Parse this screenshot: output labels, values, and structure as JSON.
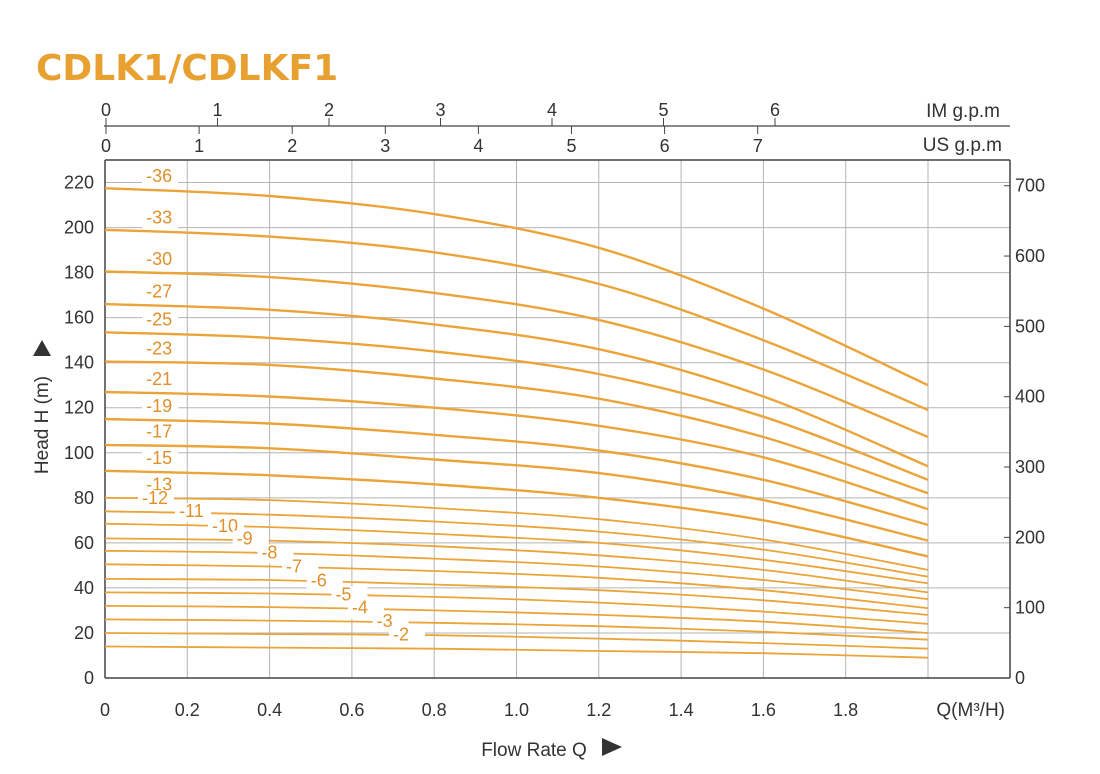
{
  "chart_data": {
    "type": "line",
    "title": "CDLK1/CDLKF1",
    "xlabel": "Flow Rate Q",
    "xunit": "Q(M³/H)",
    "ylabel": "Head H (m)",
    "xlim": [
      0,
      2.0
    ],
    "ylim": [
      0,
      230
    ],
    "x_ticks": [
      "0",
      "0.2",
      "0.4",
      "0.6",
      "0.8",
      "1.0",
      "1.2",
      "1.4",
      "1.6",
      "1.8"
    ],
    "y_ticks": [
      "0",
      "20",
      "40",
      "60",
      "80",
      "100",
      "120",
      "140",
      "160",
      "180",
      "200",
      "220"
    ],
    "right_axis": {
      "ticks": [
        "0",
        "100",
        "200",
        "300",
        "400",
        "500",
        "600",
        "700"
      ],
      "values": [
        0,
        100,
        200,
        300,
        400,
        500,
        600,
        700
      ],
      "max": 765
    },
    "top_axis_im": {
      "label": "IM g.p.m",
      "ticks": [
        "0",
        "1",
        "2",
        "3",
        "4",
        "5",
        "6"
      ]
    },
    "top_axis_us": {
      "label": "US g.p.m",
      "ticks": [
        "0",
        "1",
        "2",
        "3",
        "4",
        "5",
        "6",
        "7"
      ]
    },
    "grid": true,
    "colors": {
      "title": "#e8a030",
      "curve": "#eba43a",
      "stage_label": "#e0902a",
      "grid": "#b5b5b5",
      "axis": "#444444"
    },
    "x": [
      0,
      0.4,
      0.8,
      1.2,
      1.6,
      2.0
    ],
    "series": [
      {
        "name": "-36",
        "values": [
          217.5,
          214,
          206,
          191,
          164,
          130
        ]
      },
      {
        "name": "-33",
        "values": [
          199,
          196,
          189,
          175,
          150,
          119
        ]
      },
      {
        "name": "-30",
        "values": [
          180.5,
          178,
          171,
          159,
          137,
          107
        ]
      },
      {
        "name": "-27",
        "values": [
          166,
          163.5,
          157,
          146,
          125,
          94
        ]
      },
      {
        "name": "-25",
        "values": [
          153.5,
          151,
          145,
          135,
          116,
          88
        ]
      },
      {
        "name": "-23",
        "values": [
          140.5,
          139,
          133,
          124,
          107,
          82
        ]
      },
      {
        "name": "-21",
        "values": [
          127,
          125,
          120,
          112,
          98,
          75
        ]
      },
      {
        "name": "-19",
        "values": [
          115,
          113,
          108,
          101,
          88,
          68
        ]
      },
      {
        "name": "-17",
        "values": [
          103.5,
          102,
          97,
          91,
          79,
          61
        ]
      },
      {
        "name": "-15",
        "values": [
          92,
          90,
          86,
          80,
          70,
          54
        ]
      },
      {
        "name": "-13",
        "values": [
          80,
          79,
          75.5,
          70.5,
          61.5,
          48
        ]
      },
      {
        "name": "-12",
        "values": [
          74,
          72.5,
          69.5,
          65,
          57,
          45
        ]
      },
      {
        "name": "-11",
        "values": [
          68.5,
          67,
          64,
          60,
          52.5,
          42
        ]
      },
      {
        "name": "-10",
        "values": [
          62,
          61,
          58.5,
          54.5,
          48,
          38
        ]
      },
      {
        "name": "-9",
        "values": [
          56.5,
          55.5,
          53,
          49.5,
          43.5,
          35
        ]
      },
      {
        "name": "-8",
        "values": [
          50.5,
          49.5,
          47.5,
          44.5,
          39,
          31
        ]
      },
      {
        "name": "-7",
        "values": [
          44,
          43.5,
          41.5,
          39,
          34.5,
          28
        ]
      },
      {
        "name": "-6",
        "values": [
          38,
          37.5,
          36,
          33.5,
          29.5,
          24
        ]
      },
      {
        "name": "-5",
        "values": [
          32,
          31.5,
          30,
          28,
          25,
          20
        ]
      },
      {
        "name": "-4",
        "values": [
          26,
          25.5,
          24.5,
          23,
          20.5,
          17
        ]
      },
      {
        "name": "-3",
        "values": [
          20,
          19.5,
          19,
          17.5,
          15.5,
          13
        ]
      },
      {
        "name": "-2",
        "values": [
          14,
          13.5,
          13,
          12,
          11,
          9
        ]
      }
    ]
  }
}
